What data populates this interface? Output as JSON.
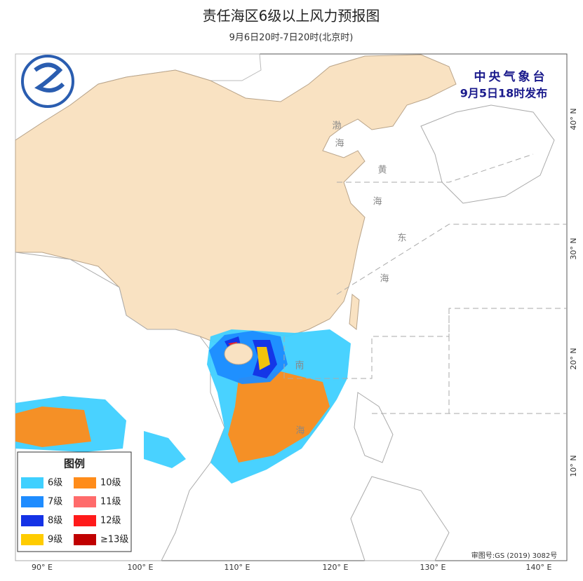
{
  "header": {
    "title": "责任海区6级以上风力预报图",
    "subtitle": "9月6日20时-7日20时(北京时)"
  },
  "issuer": {
    "name": "中央气象台",
    "time": "9月5日18时发布"
  },
  "sea_labels": [
    "渤",
    "海",
    "黄",
    "海",
    "东",
    "海",
    "南",
    "海"
  ],
  "lon_labels": [
    "90° E",
    "100° E",
    "110° E",
    "120° E",
    "130° E",
    "140° E"
  ],
  "lat_labels": [
    "40° N",
    "30° N",
    "20° N",
    "10° N"
  ],
  "legend": {
    "title": "图例",
    "items": [
      {
        "label": "6级",
        "color": "#3fd0ff"
      },
      {
        "label": "10级",
        "color": "#ff8c1a"
      },
      {
        "label": "7级",
        "color": "#1e8cff"
      },
      {
        "label": "11级",
        "color": "#ff6b6b"
      },
      {
        "label": "8级",
        "color": "#1432e6"
      },
      {
        "label": "12级",
        "color": "#ff1a1a"
      },
      {
        "label": "9级",
        "color": "#ffcc00"
      },
      {
        "label": "≥13级",
        "color": "#c00000"
      }
    ]
  },
  "map_number": "审图号:GS (2019) 3082号"
}
